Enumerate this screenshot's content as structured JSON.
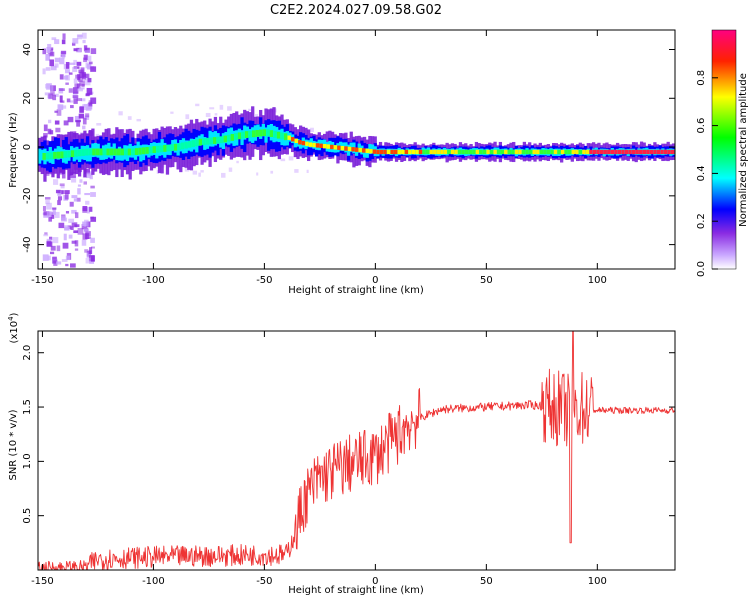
{
  "title": "C2E2.2024.027.09.58.G02",
  "chart_data": [
    {
      "type": "heatmap",
      "xlabel": "Height of straight line (km)",
      "ylabel": "Frequency (Hz)",
      "xlim": [
        -152,
        135
      ],
      "ylim": [
        -50,
        48
      ],
      "xticks": [
        -150,
        -100,
        -50,
        0,
        50,
        100
      ],
      "yticks": [
        -40,
        -20,
        0,
        20,
        40
      ],
      "colorbar": {
        "label": "Normalized spectral amplitude",
        "range": [
          0,
          1
        ],
        "ticks": [
          "0.0",
          "0.2",
          "0.4",
          "0.6",
          "0.8"
        ],
        "colors": [
          "#ffffff",
          "#8a2be2",
          "#0000ff",
          "#00ffff",
          "#00ff00",
          "#ffff00",
          "#ff0000",
          "#ff00aa"
        ]
      },
      "ridge": {
        "x": [
          -152,
          -140,
          -130,
          -120,
          -110,
          -100,
          -90,
          -80,
          -70,
          -60,
          -50,
          -45,
          -40,
          -35,
          -30,
          -20,
          -10,
          0,
          20,
          50,
          100,
          135
        ],
        "y": [
          -4,
          -3,
          -2,
          -2,
          -2,
          -1,
          0,
          2,
          3,
          5,
          6,
          5,
          4,
          2,
          1,
          0,
          -1,
          -2,
          -2,
          -2,
          -2,
          -2
        ]
      }
    },
    {
      "type": "line",
      "xlabel": "Height of straight line (km)",
      "ylabel": "SNR (10 * v/v)",
      "yscale_label": "(x10",
      "yscale_exp": "4",
      "xlim": [
        -152,
        135
      ],
      "ylim": [
        0,
        2.2
      ],
      "xticks": [
        -150,
        -100,
        -50,
        0,
        50,
        100
      ],
      "yticks": [
        0.5,
        1.0,
        1.5,
        2.0
      ],
      "color": "#ee3333",
      "envelope": {
        "x": [
          -152,
          -130,
          -125,
          -100,
          -75,
          -50,
          -40,
          -36,
          -32,
          -25,
          -15,
          -8,
          0,
          8,
          15,
          20,
          30,
          50,
          70,
          80,
          85,
          88,
          92,
          96,
          100,
          135
        ],
        "y": [
          0.02,
          0.03,
          0.1,
          0.12,
          0.13,
          0.14,
          0.14,
          0.35,
          0.65,
          0.85,
          0.95,
          1.0,
          1.05,
          1.2,
          1.35,
          1.4,
          1.48,
          1.5,
          1.52,
          1.5,
          1.48,
          1.45,
          1.5,
          1.48,
          1.47,
          1.47
        ]
      }
    }
  ]
}
